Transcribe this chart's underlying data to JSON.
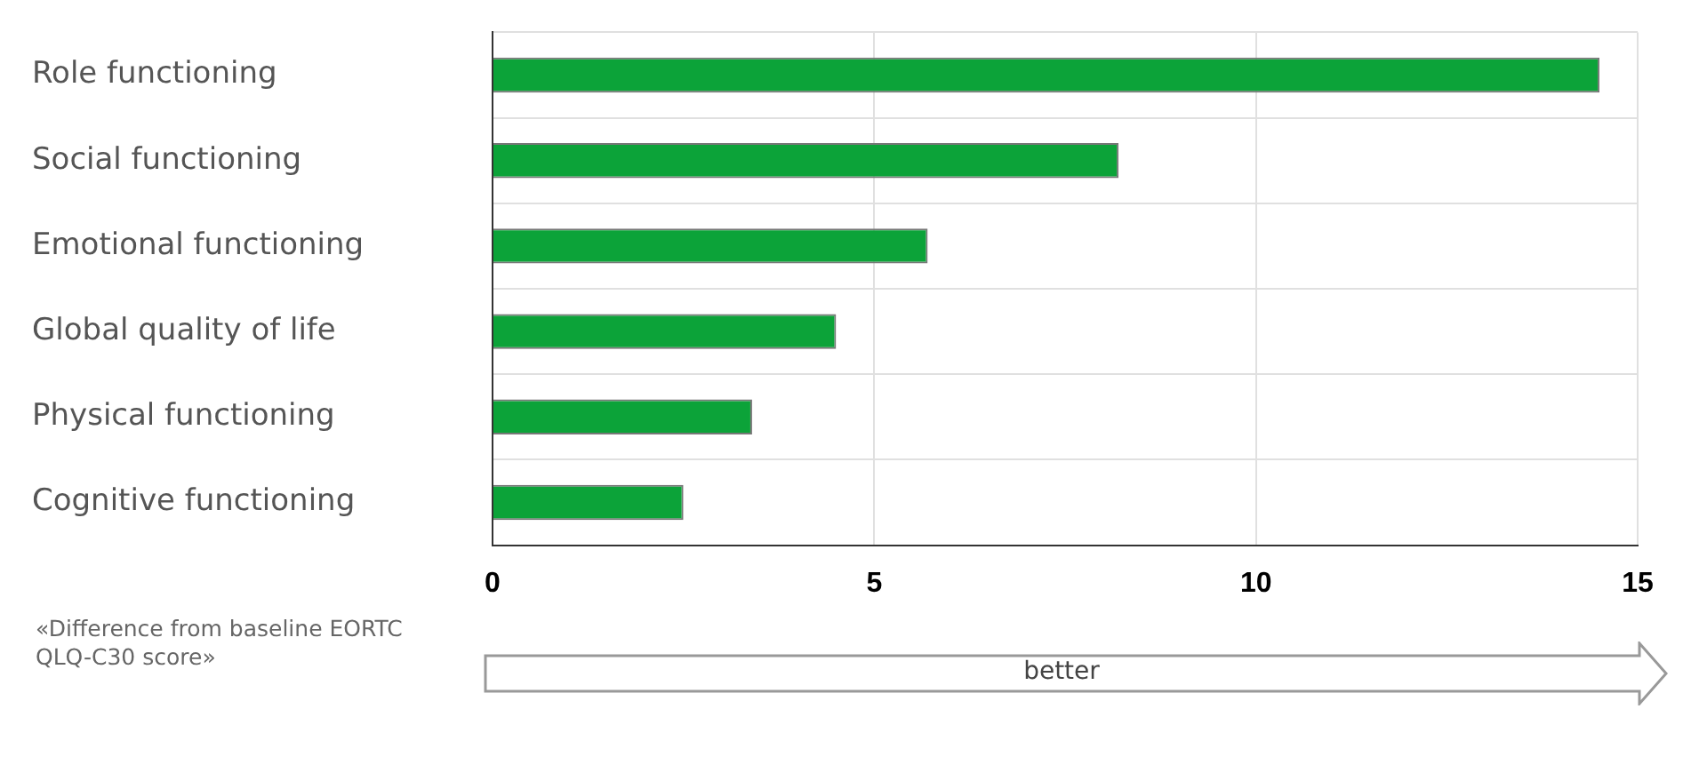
{
  "chart_data": {
    "type": "bar",
    "orientation": "horizontal",
    "categories": [
      "Role functioning",
      "Social functioning",
      "Emotional functioning",
      "Global quality of life",
      "Physical functioning",
      "Cognitive functioning"
    ],
    "values": [
      14.5,
      8.2,
      5.7,
      4.5,
      3.4,
      2.5
    ],
    "color": "#0ca339",
    "xlim": [
      0,
      15
    ],
    "xticks": [
      0,
      5,
      10,
      15
    ],
    "grid": true,
    "legend": false,
    "xlabel": "«Difference from baseline EORTC QLQ-C30 score»",
    "annotations": [
      "better"
    ]
  }
}
